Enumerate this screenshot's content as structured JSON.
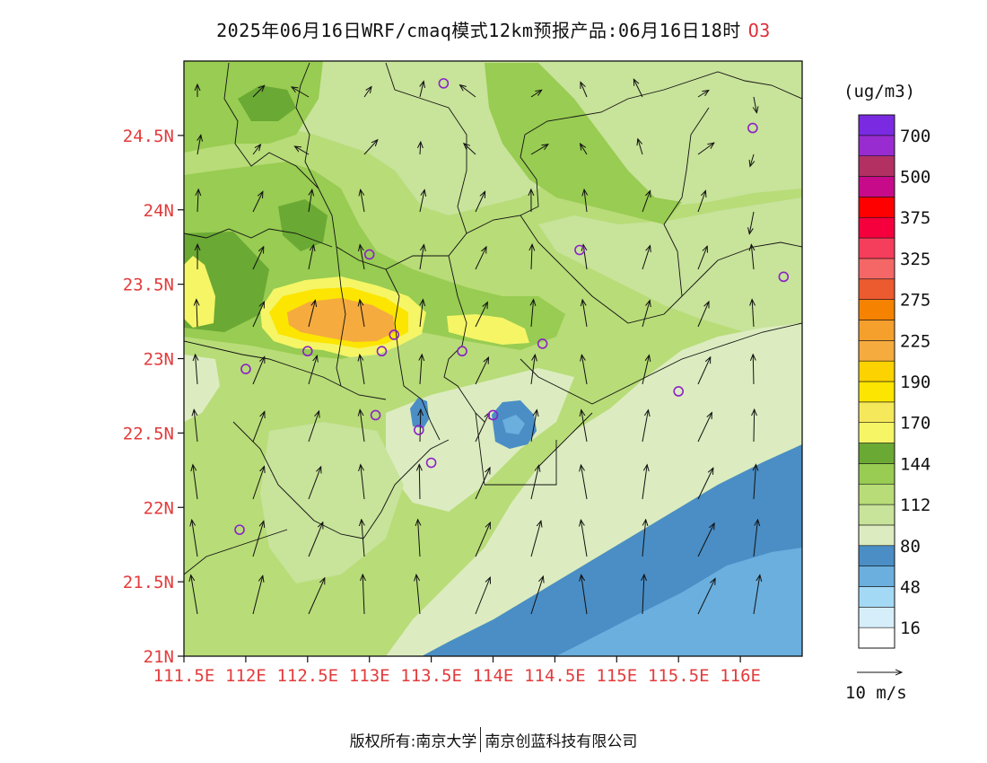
{
  "title": "2025年06月16日WRF/cmaq模式12km预报产品:06月16日18时",
  "species": "O3",
  "unit_label": "(ug/m3)",
  "wind_ref_label": "10 m/s",
  "footer": {
    "left": "版权所有:南京大学",
    "right": "南京创蓝科技有限公司"
  },
  "map": {
    "lon_range": [
      111.5,
      116.5
    ],
    "lat_range": [
      21.0,
      25.0
    ],
    "x_ticks": [
      "111.5E",
      "112E",
      "112.5E",
      "113E",
      "113.5E",
      "114E",
      "114.5E",
      "115E",
      "115.5E",
      "116E"
    ],
    "x_tick_values": [
      111.5,
      112.0,
      112.5,
      113.0,
      113.5,
      114.0,
      114.5,
      115.0,
      115.5,
      116.0
    ],
    "y_ticks": [
      "21N",
      "21.5N",
      "22N",
      "22.5N",
      "23N",
      "23.5N",
      "24N",
      "24.5N"
    ],
    "y_tick_values": [
      21.0,
      21.5,
      22.0,
      22.5,
      23.0,
      23.5,
      24.0,
      24.5
    ],
    "station_color": "#8a22c7",
    "stations": [
      [
        113.6,
        24.85
      ],
      [
        116.1,
        24.55
      ],
      [
        113.0,
        23.7
      ],
      [
        114.7,
        23.73
      ],
      [
        116.35,
        23.55
      ],
      [
        112.5,
        23.05
      ],
      [
        113.1,
        23.05
      ],
      [
        113.2,
        23.16
      ],
      [
        113.75,
        23.05
      ],
      [
        114.4,
        23.1
      ],
      [
        112.0,
        22.93
      ],
      [
        113.05,
        22.62
      ],
      [
        113.4,
        22.52
      ],
      [
        114.0,
        22.62
      ],
      [
        115.5,
        22.78
      ],
      [
        113.5,
        22.3
      ],
      [
        111.95,
        21.85
      ]
    ]
  },
  "colorbar": {
    "colors": [
      "#ffffff",
      "#d6eefa",
      "#a4d9f5",
      "#6aafde",
      "#4a8ec5",
      "#dcecc0",
      "#c8e39a",
      "#b8dc78",
      "#98cc52",
      "#6aa934",
      "#f5f566",
      "#f5e85b",
      "#fce500",
      "#fcd200",
      "#f5ab3e",
      "#f59f2c",
      "#f58200",
      "#ec5a30",
      "#f56666",
      "#f53d5c",
      "#f5003d",
      "#ff0000",
      "#c70a8a",
      "#b33063",
      "#982cd0",
      "#7a2ae0"
    ],
    "labels": [
      "16",
      "48",
      "80",
      "112",
      "144",
      "170",
      "190",
      "225",
      "275",
      "325",
      "375",
      "500",
      "700"
    ]
  },
  "chart_data": {
    "type": "heatmap",
    "title": "2025年06月16日WRF/cmaq模式12km预报产品:06月16日18时 O3",
    "xlabel": "",
    "ylabel": "",
    "xlim": [
      111.5,
      116.5
    ],
    "ylim": [
      21.0,
      25.0
    ],
    "colorbar_levels": [
      16,
      48,
      80,
      112,
      144,
      170,
      190,
      225,
      275,
      325,
      375,
      500,
      700
    ],
    "regions": [
      {
        "desc_level": 170,
        "center": [
          112.9,
          23.3
        ]
      },
      {
        "desc_level": 190,
        "center": [
          112.85,
          23.28
        ]
      },
      {
        "desc_level": 160,
        "center": [
          111.6,
          23.45
        ]
      },
      {
        "desc_level": 160,
        "center": [
          114.0,
          23.2
        ]
      },
      {
        "desc_level": 48,
        "center": [
          114.05,
          22.6
        ]
      },
      {
        "desc_level": 48,
        "center": [
          113.55,
          22.62
        ]
      },
      {
        "desc_level": 48,
        "center": [
          115.6,
          21.5
        ]
      }
    ]
  }
}
